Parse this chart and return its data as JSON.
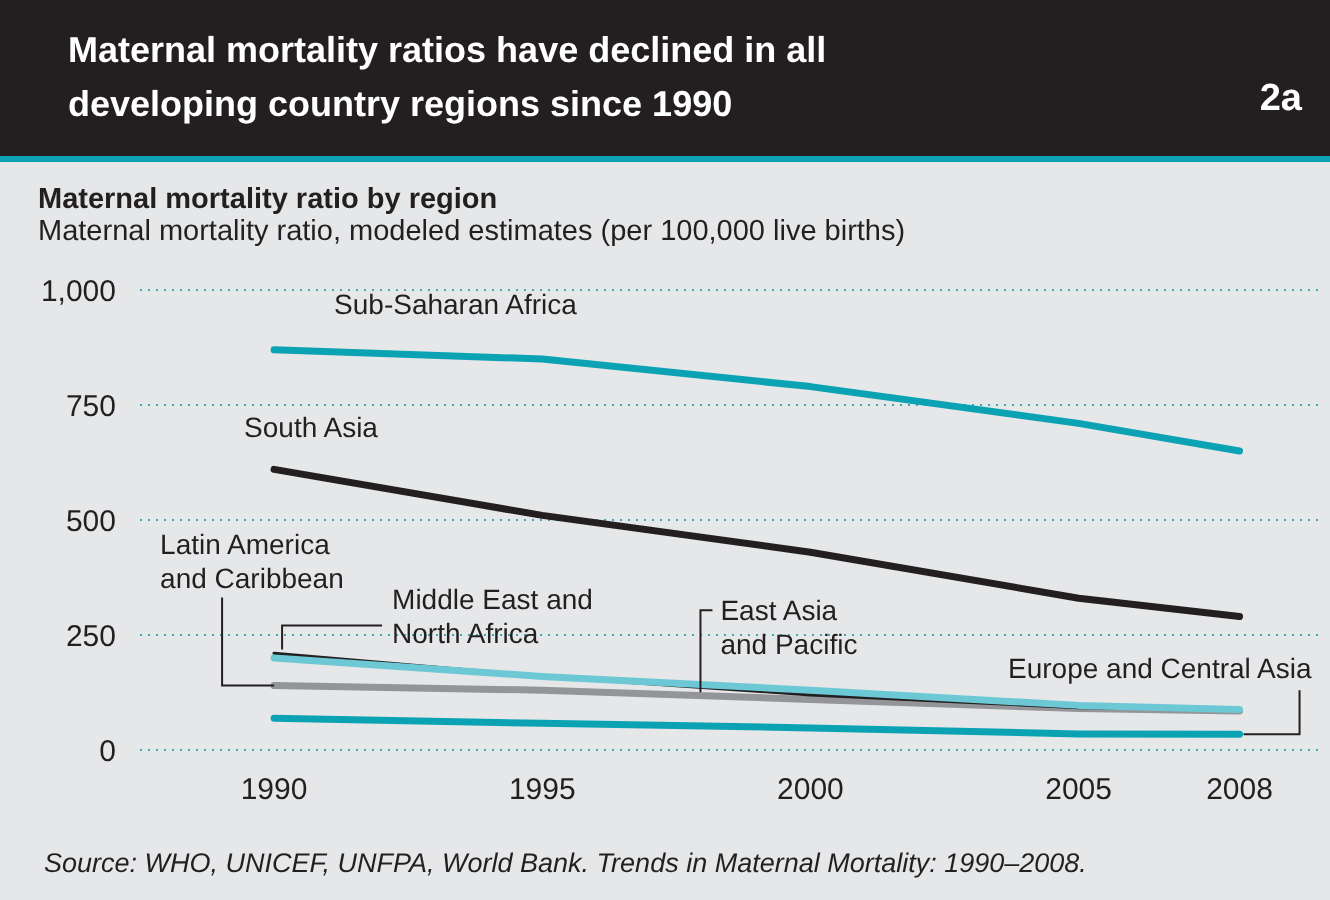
{
  "chart_data": {
    "type": "line",
    "title": "Maternal mortality ratios have declined in all developing country regions since 1990",
    "subtitle": "Maternal mortality ratio by region",
    "ylabel": "Maternal mortality ratio, modeled estimates (per 100,000 live births)",
    "annotations": [
      "2a",
      "Source: WHO, UNICEF, UNFPA, World Bank. Trends in Maternal Mortality: 1990–2008."
    ],
    "x": [
      1990,
      1995,
      2000,
      2005,
      2008
    ],
    "series": [
      {
        "name": "Sub-Saharan Africa",
        "color": "#0ba3b3",
        "values": [
          870,
          850,
          790,
          710,
          650
        ]
      },
      {
        "name": "South Asia",
        "color": "#231f20",
        "values": [
          610,
          510,
          430,
          330,
          290
        ]
      },
      {
        "name": "Latin America and Caribbean",
        "color": "#939598",
        "values": [
          140,
          130,
          110,
          90,
          85
        ]
      },
      {
        "name": "Middle East and North Africa",
        "color": "#231f20",
        "values": [
          210,
          160,
          120,
          92,
          88
        ]
      },
      {
        "name": "East Asia and Pacific",
        "color": "#6cc8d4",
        "values": [
          200,
          160,
          130,
          97,
          88
        ]
      },
      {
        "name": "Europe and Central Asia",
        "color": "#0ba3b3",
        "values": [
          69,
          58,
          48,
          35,
          34
        ]
      }
    ],
    "xlim": [
      1987.5,
      2009.5
    ],
    "xticks": [
      1990,
      1995,
      2000,
      2005,
      2008
    ],
    "ylim": [
      0,
      1000
    ],
    "yticks": [
      0,
      250,
      500,
      750,
      {
        "value": 1000,
        "label": "1,000"
      }
    ],
    "grid": "y",
    "marker": "none",
    "line_style": "solid"
  }
}
